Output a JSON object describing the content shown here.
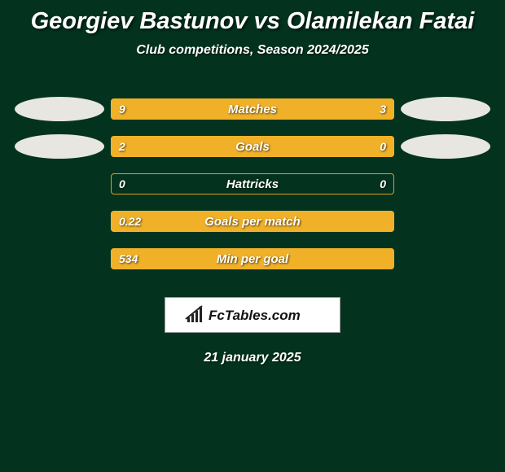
{
  "background_color": "#03331f",
  "accent_color": "#f0b129",
  "border_color": "#dca020",
  "badge_color": "#e8e6e1",
  "text_color": "#ffffff",
  "title": {
    "text": "Georgiev Bastunov vs Olamilekan Fatai",
    "fontsize": 29
  },
  "subtitle": {
    "text": "Club competitions, Season 2024/2025",
    "fontsize": 16
  },
  "rows": [
    {
      "label": "Matches",
      "left_value": "9",
      "right_value": "3",
      "left_fill_pct": 72,
      "right_fill_pct": 28,
      "show_left_badge": true,
      "show_right_badge": true
    },
    {
      "label": "Goals",
      "left_value": "2",
      "right_value": "0",
      "left_fill_pct": 76,
      "right_fill_pct": 24,
      "show_left_badge": true,
      "show_right_badge": true
    },
    {
      "label": "Hattricks",
      "left_value": "0",
      "right_value": "0",
      "left_fill_pct": 0,
      "right_fill_pct": 0,
      "show_left_badge": false,
      "show_right_badge": false
    },
    {
      "label": "Goals per match",
      "left_value": "0.22",
      "right_value": "",
      "left_fill_pct": 100,
      "right_fill_pct": 0,
      "show_left_badge": false,
      "show_right_badge": false
    },
    {
      "label": "Min per goal",
      "left_value": "534",
      "right_value": "",
      "left_fill_pct": 100,
      "right_fill_pct": 0,
      "show_left_badge": false,
      "show_right_badge": false
    }
  ],
  "brand": {
    "text": "FcTables.com",
    "fontsize": 16
  },
  "date": {
    "text": "21 january 2025"
  }
}
